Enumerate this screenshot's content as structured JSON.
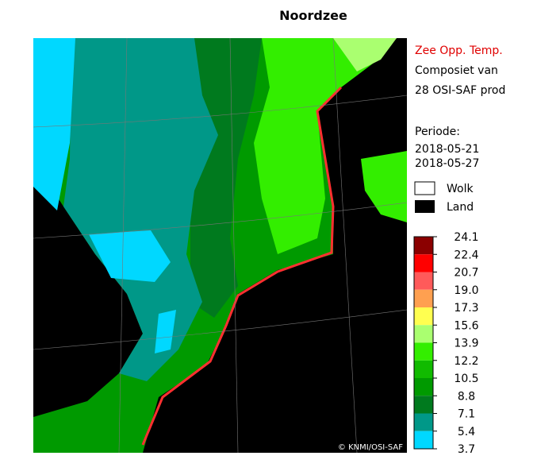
{
  "header": {
    "title": "Noordzee"
  },
  "legend": {
    "parameter": "Zee Opp. Temp.",
    "line1": "Composiet van",
    "line2": "28 OSI-SAF prod",
    "period_label": "Periode:",
    "period_start": "2018-05-21",
    "period_end": "2018-05-27",
    "cloud": "Wolk",
    "land": "Land"
  },
  "colorbar": {
    "ticks": [
      24.1,
      22.4,
      20.7,
      {
        "value": 19,
        "label": "19.0"
      },
      17.3,
      15.6,
      13.9,
      12.2,
      10.5,
      8.8,
      7.1,
      5.4,
      3.7
    ],
    "colors": [
      "#8b0000",
      "#ff0000",
      "#ff5a5a",
      "#ffa050",
      "#ffff50",
      "#aaff70",
      "#33ee00",
      "#11bb00",
      "#009a00",
      "#007a1e",
      "#009888",
      "#00d8ff",
      "#80ffff"
    ]
  },
  "map": {
    "credit": "© KNMI/OSI-SAF"
  }
}
